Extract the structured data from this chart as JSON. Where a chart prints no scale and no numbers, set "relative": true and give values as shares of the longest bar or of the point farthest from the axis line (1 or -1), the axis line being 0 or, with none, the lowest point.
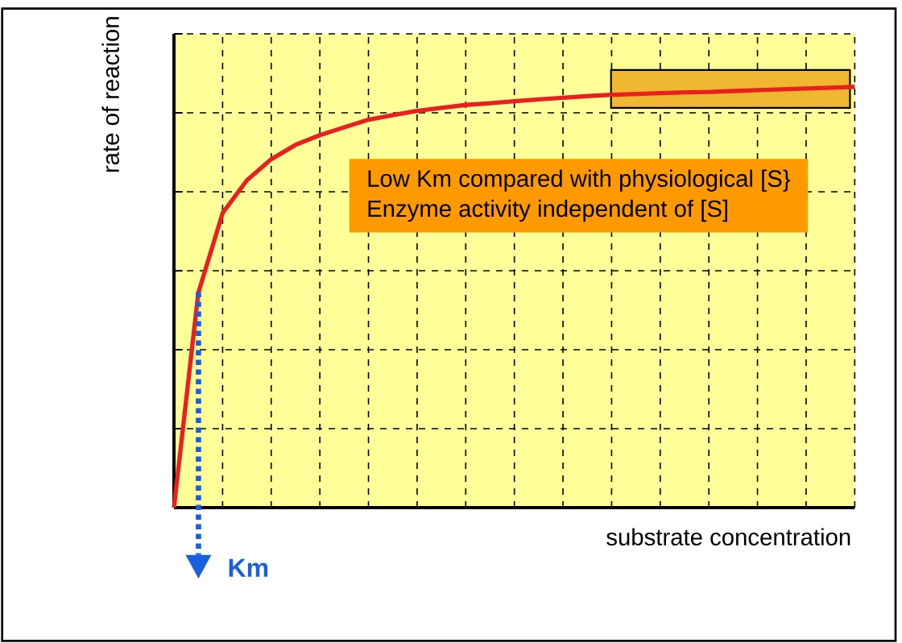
{
  "chart_data": {
    "type": "line",
    "relative": true,
    "xlabel": "substrate concentration",
    "ylabel": "rate of reaction",
    "categories": [
      null,
      null,
      null,
      null,
      null,
      null,
      null,
      null,
      null,
      null,
      null,
      null,
      null,
      null,
      null,
      null,
      null,
      null,
      null,
      null,
      null,
      null,
      null,
      null,
      null,
      null,
      null,
      null,
      null
    ],
    "series": [
      {
        "color": "#e82020",
        "values": [
          0,
          0.51,
          0.7,
          0.778,
          0.828,
          0.862,
          0.885,
          0.904,
          0.922,
          0.933,
          0.943,
          0.95,
          0.957,
          0.961,
          0.966,
          0.97,
          0.974,
          0.978,
          0.981,
          0.983,
          0.985,
          0.987,
          0.988,
          0.99,
          0.992,
          0.994,
          0.996,
          0.998,
          1
        ]
      }
    ],
    "annotations": [
      "Low Km compared with physiological [S}",
      "Enzyme activity independent of [S]",
      "Km"
    ],
    "bands": [
      {
        "axis": "y",
        "from": 0.95,
        "to": 1.04,
        "color": "#f0b830"
      }
    ],
    "grid": true,
    "marker": "none",
    "line_style": "solid"
  }
}
